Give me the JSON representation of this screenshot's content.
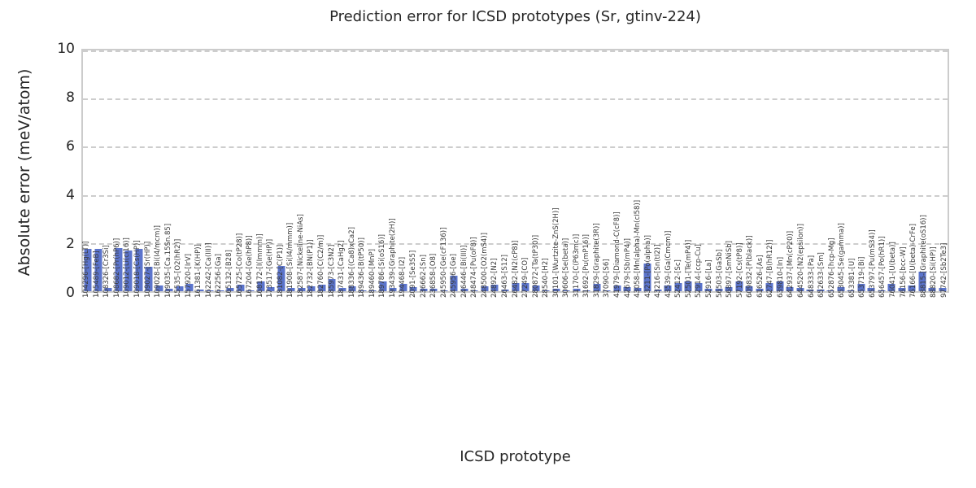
{
  "chart_data": {
    "type": "bar",
    "title": "Prediction error for ICSD prototypes (Sr, gtinv-224)",
    "xlabel": "ICSD prototype",
    "ylabel": "Absolute error (meV/atom)",
    "ylim": [
      0,
      10
    ],
    "yticks": [
      0,
      2,
      4,
      6,
      8,
      10
    ],
    "grid": "dashed horizontal",
    "legend": "none",
    "bar_color": "#5b74cc",
    "categories": [
      "104296-[Hg(LT)]",
      "105489-[FeB]",
      "108326-[Cr3Si]",
      "108682-[Pr(hP6)]",
      "109012-[Li(cI16)]",
      "109018-[Cs(HP)]",
      "109027-[Sr(HP)]",
      "109028-[Bi(I4/mcm)]",
      "109035-[Ca.15Sn.85]",
      "15535-[O2(hR2)]",
      "157920-[IrV]",
      "161381-[K(HP)]",
      "162242-[Ca(III)]",
      "162256-[Ga]",
      "165132-[B28]",
      "165725-[Co(tP28)]",
      "167204-[Ge(hP8)]",
      "168172-[I(Immm)]",
      "173517-[Ge(HP)]",
      "181082-[C(P1)]",
      "181908-[Si(I4/mmm)]",
      "182587-[Nickeline-NiAs]",
      "182732-[BN(P1)]",
      "182760-[C(C2/m)]",
      "185973-[C3N2]",
      "187431-[CaHg2]",
      "188336-[(Ca8)xCa2]",
      "189436-[B(tP50)]",
      "189460-[MnP]",
      "189786-[Si(oS16)]",
      "193439-[Graphite(2H)]",
      "194468-[I2]",
      "2091-[Se3S5]",
      "236662-[Sn]",
      "236858-[O8]",
      "245950-[Ge(cF136)]",
      "245956-[Ge]",
      "246446-[Bi(III)]",
      "248474-[Pu(oF8)]",
      "248500-[O2(mS4)]",
      "24892-[N2]",
      "26463-[S12]",
      "26482-[N2(cP8)]",
      "27249-[CO]",
      "280872-[Ta(tP30)]",
      "28540-[H2]",
      "30101-[Wurtzite-ZnS(2H)]",
      "30606-[Se(beta)]",
      "31170-[C(P63mc)]",
      "31692-[Pu(mP16)]",
      "31829-[Graphite(3R)]",
      "37090-[S6]",
      "41979-[Diamond-C(cF8)]",
      "42679-[Sb(mP4)]",
      "43058-[Mn(alpha)-Mn(cI58)]",
      "43211-[Po(alpha)]",
      "43216-[Sn(tI2)]",
      "43539-[Ga(Cmcm)]",
      "52412-[Sc]",
      "52501-[Te(mP4)]",
      "52914-[ccp-Cu]",
      "52916-[La]",
      "56503-[GaSb]",
      "56897-[SmNiSb]",
      "57192-[Cs(tP8)]",
      "609832-[P(black)]",
      "616526-[As]",
      "62747-[B(hR12)]",
      "639810-[In]",
      "642937-[Mn(cP20)]",
      "644520-[N2(epsilon)]",
      "648333-[Pa]",
      "652633-[Sm]",
      "652876-[hcp-Mg]",
      "653045-[Se(gamma)]",
      "653381-[U]",
      "653719-[Bi]",
      "653797-[Pu(mS34)]",
      "656457-[Po(hR1)]",
      "76041-[U(beta)]",
      "76156-[bcc-W]",
      "76166-[U(beta)-CrFe]",
      "88815-[Graphite(oS16)]",
      "88820-[Si(HP)]",
      "97742-[Sb2Te3]"
    ],
    "values": [
      1.75,
      1.75,
      0.15,
      1.8,
      1.7,
      1.75,
      1.0,
      0.25,
      0.1,
      0.2,
      0.3,
      0.08,
      0.02,
      0.02,
      0.13,
      0.28,
      0.02,
      0.4,
      0.17,
      1.05,
      0.13,
      0.15,
      0.2,
      0.27,
      0.5,
      0.12,
      0.2,
      0.02,
      0.02,
      0.4,
      0.15,
      0.3,
      0.16,
      0.1,
      0.1,
      0.03,
      0.65,
      0.1,
      0.03,
      0.2,
      0.28,
      0.08,
      0.35,
      0.33,
      0.25,
      0.02,
      0.1,
      0.03,
      0.1,
      0.03,
      0.3,
      0.03,
      0.25,
      0.16,
      0.12,
      1.15,
      0.07,
      0.23,
      0.33,
      0.4,
      0.33,
      0.1,
      0.11,
      0.18,
      0.4,
      0.22,
      0.11,
      0.33,
      0.4,
      0.17,
      0.14,
      0.08,
      0.07,
      0.02,
      0.16,
      0.02,
      0.3,
      0.15,
      0.02,
      0.3,
      0.15,
      0.25,
      0.8,
      0.15,
      0.15
    ]
  }
}
